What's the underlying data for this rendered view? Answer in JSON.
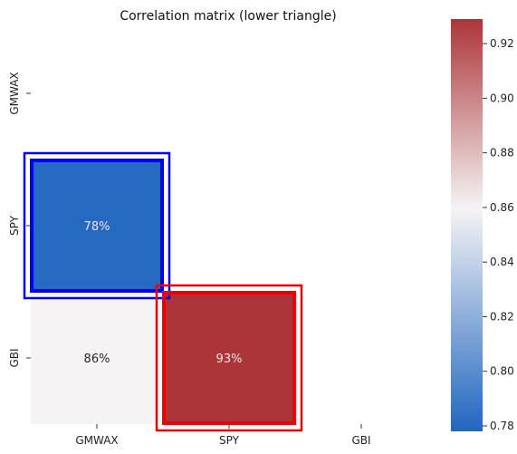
{
  "chart_data": {
    "type": "heatmap",
    "title": "Correlation matrix (lower triangle)",
    "x_labels": [
      "GMWAX",
      "SPY",
      "GBI"
    ],
    "y_labels": [
      "GMWAX",
      "SPY",
      "GBI"
    ],
    "cells": [
      {
        "row": 1,
        "col": 0,
        "value": 0.78,
        "label": "78%"
      },
      {
        "row": 2,
        "col": 0,
        "value": 0.86,
        "label": "86%"
      },
      {
        "row": 2,
        "col": 1,
        "value": 0.93,
        "label": "93%"
      }
    ],
    "colorbar": {
      "vmin": 0.778,
      "vmax": 0.929,
      "ticks": [
        0.78,
        0.8,
        0.82,
        0.84,
        0.86,
        0.88,
        0.9,
        0.92
      ],
      "tick_labels": [
        "0.78",
        "0.80",
        "0.82",
        "0.84",
        "0.86",
        "0.88",
        "0.90",
        "0.92"
      ],
      "colormap": [
        "#2166c0",
        "#f5f4f4",
        "#ac3539"
      ]
    },
    "highlights": [
      {
        "row": 1,
        "col": 0,
        "color": "#0000ee"
      },
      {
        "row": 2,
        "col": 1,
        "color": "#ee0000"
      }
    ]
  }
}
